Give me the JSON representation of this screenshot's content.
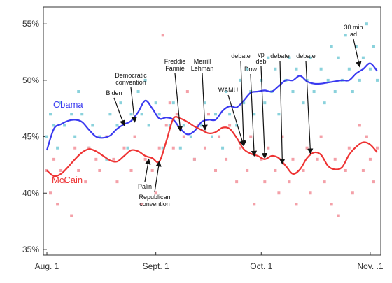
{
  "chart_data": {
    "type": "scatter",
    "title": "",
    "xlabel": "",
    "ylabel": "",
    "x_domain": [
      "2008-07-31",
      "2008-11-04"
    ],
    "ylim": [
      34.5,
      56.5
    ],
    "grid": false,
    "x_ticks": [
      {
        "date": "2008-08-01",
        "label": "Aug. 1"
      },
      {
        "date": "2008-09-01",
        "label": "Sept. 1"
      },
      {
        "date": "2008-10-01",
        "label": "Oct. 1"
      },
      {
        "date": "2008-11-01",
        "label": "Nov. .1"
      }
    ],
    "y_ticks": [
      {
        "value": 35,
        "label": "35%"
      },
      {
        "value": 40,
        "label": "40%"
      },
      {
        "value": 45,
        "label": "45%"
      },
      {
        "value": 50,
        "label": "50%"
      },
      {
        "value": 55,
        "label": "55%"
      }
    ],
    "series": [
      {
        "name": "Obama",
        "line_color": "#3a3af0",
        "point_color": "#8ad2dc",
        "trend": [
          [
            "2008-08-01",
            43.8
          ],
          [
            "2008-08-03",
            45.7
          ],
          [
            "2008-08-05",
            46.1
          ],
          [
            "2008-08-07",
            46.4
          ],
          [
            "2008-08-09",
            46.5
          ],
          [
            "2008-08-11",
            46.3
          ],
          [
            "2008-08-13",
            45.6
          ],
          [
            "2008-08-15",
            45.0
          ],
          [
            "2008-08-17",
            44.9
          ],
          [
            "2008-08-19",
            45.1
          ],
          [
            "2008-08-21",
            45.7
          ],
          [
            "2008-08-23",
            46.1
          ],
          [
            "2008-08-25",
            46.4
          ],
          [
            "2008-08-27",
            47.2
          ],
          [
            "2008-08-29",
            48.2
          ],
          [
            "2008-08-31",
            47.5
          ],
          [
            "2008-09-02",
            46.6
          ],
          [
            "2008-09-04",
            46.7
          ],
          [
            "2008-09-06",
            46.5
          ],
          [
            "2008-09-08",
            45.7
          ],
          [
            "2008-09-10",
            45.2
          ],
          [
            "2008-09-12",
            45.5
          ],
          [
            "2008-09-14",
            46.3
          ],
          [
            "2008-09-16",
            46.5
          ],
          [
            "2008-09-18",
            46.5
          ],
          [
            "2008-09-20",
            47.3
          ],
          [
            "2008-09-22",
            47.7
          ],
          [
            "2008-09-24",
            47.6
          ],
          [
            "2008-09-26",
            48.2
          ],
          [
            "2008-09-28",
            48.9
          ],
          [
            "2008-09-30",
            49.0
          ],
          [
            "2008-10-02",
            49.1
          ],
          [
            "2008-10-04",
            49.0
          ],
          [
            "2008-10-06",
            49.5
          ],
          [
            "2008-10-08",
            50.0
          ],
          [
            "2008-10-10",
            50.0
          ],
          [
            "2008-10-12",
            50.4
          ],
          [
            "2008-10-14",
            49.9
          ],
          [
            "2008-10-16",
            49.7
          ],
          [
            "2008-10-18",
            49.7
          ],
          [
            "2008-10-20",
            49.8
          ],
          [
            "2008-10-22",
            49.9
          ],
          [
            "2008-10-24",
            50.0
          ],
          [
            "2008-10-26",
            50.0
          ],
          [
            "2008-10-28",
            50.6
          ],
          [
            "2008-10-30",
            51.0
          ],
          [
            "2008-11-01",
            51.5
          ],
          [
            "2008-11-03",
            50.8
          ]
        ],
        "polls": [
          [
            "2008-08-01",
            45
          ],
          [
            "2008-08-02",
            47
          ],
          [
            "2008-08-03",
            46
          ],
          [
            "2008-08-04",
            44
          ],
          [
            "2008-08-05",
            48
          ],
          [
            "2008-08-06",
            46
          ],
          [
            "2008-08-08",
            47
          ],
          [
            "2008-08-09",
            45
          ],
          [
            "2008-08-10",
            49
          ],
          [
            "2008-08-11",
            47
          ],
          [
            "2008-08-13",
            44
          ],
          [
            "2008-08-14",
            46
          ],
          [
            "2008-08-16",
            45
          ],
          [
            "2008-08-18",
            43
          ],
          [
            "2008-08-19",
            47
          ],
          [
            "2008-08-21",
            46
          ],
          [
            "2008-08-22",
            48
          ],
          [
            "2008-08-24",
            44
          ],
          [
            "2008-08-25",
            47
          ],
          [
            "2008-08-27",
            49
          ],
          [
            "2008-08-28",
            47
          ],
          [
            "2008-08-29",
            50
          ],
          [
            "2008-08-30",
            46
          ],
          [
            "2008-09-01",
            48
          ],
          [
            "2008-09-02",
            47
          ],
          [
            "2008-09-03",
            44
          ],
          [
            "2008-09-05",
            46
          ],
          [
            "2008-09-06",
            48
          ],
          [
            "2008-09-08",
            44
          ],
          [
            "2008-09-09",
            46
          ],
          [
            "2008-09-11",
            45
          ],
          [
            "2008-09-12",
            43
          ],
          [
            "2008-09-14",
            46
          ],
          [
            "2008-09-15",
            48
          ],
          [
            "2008-09-17",
            45
          ],
          [
            "2008-09-18",
            47
          ],
          [
            "2008-09-20",
            44
          ],
          [
            "2008-09-21",
            49
          ],
          [
            "2008-09-22",
            47
          ],
          [
            "2008-09-24",
            46
          ],
          [
            "2008-09-25",
            50
          ],
          [
            "2008-09-26",
            48
          ],
          [
            "2008-09-27",
            51
          ],
          [
            "2008-09-28",
            49
          ],
          [
            "2008-09-29",
            47
          ],
          [
            "2008-10-01",
            50
          ],
          [
            "2008-10-02",
            48
          ],
          [
            "2008-10-03",
            52
          ],
          [
            "2008-10-04",
            49
          ],
          [
            "2008-10-05",
            51
          ],
          [
            "2008-10-06",
            47
          ],
          [
            "2008-10-08",
            50
          ],
          [
            "2008-10-09",
            52
          ],
          [
            "2008-10-10",
            49
          ],
          [
            "2008-10-11",
            51
          ],
          [
            "2008-10-13",
            48
          ],
          [
            "2008-10-14",
            50
          ],
          [
            "2008-10-15",
            52
          ],
          [
            "2008-10-16",
            49
          ],
          [
            "2008-10-18",
            51
          ],
          [
            "2008-10-19",
            48
          ],
          [
            "2008-10-20",
            50
          ],
          [
            "2008-10-21",
            53
          ],
          [
            "2008-10-22",
            49
          ],
          [
            "2008-10-23",
            52
          ],
          [
            "2008-10-24",
            50
          ],
          [
            "2008-10-25",
            54
          ],
          [
            "2008-10-26",
            51
          ],
          [
            "2008-10-27",
            49
          ],
          [
            "2008-10-28",
            53
          ],
          [
            "2008-10-29",
            50
          ],
          [
            "2008-10-30",
            52
          ],
          [
            "2008-10-31",
            55
          ],
          [
            "2008-11-01",
            51
          ],
          [
            "2008-11-02",
            53
          ],
          [
            "2008-11-03",
            50
          ]
        ]
      },
      {
        "name": "McCain",
        "line_color": "#ee3333",
        "point_color": "#f4a0a8",
        "trend": [
          [
            "2008-08-01",
            42.0
          ],
          [
            "2008-08-03",
            41.5
          ],
          [
            "2008-08-05",
            41.7
          ],
          [
            "2008-08-07",
            42.3
          ],
          [
            "2008-08-09",
            43.0
          ],
          [
            "2008-08-11",
            43.6
          ],
          [
            "2008-08-13",
            43.9
          ],
          [
            "2008-08-15",
            43.7
          ],
          [
            "2008-08-17",
            43.3
          ],
          [
            "2008-08-19",
            42.9
          ],
          [
            "2008-08-21",
            42.8
          ],
          [
            "2008-08-23",
            43.3
          ],
          [
            "2008-08-25",
            43.8
          ],
          [
            "2008-08-27",
            43.7
          ],
          [
            "2008-08-29",
            43.3
          ],
          [
            "2008-08-31",
            43.1
          ],
          [
            "2008-09-02",
            42.8
          ],
          [
            "2008-09-04",
            44.6
          ],
          [
            "2008-09-06",
            46.6
          ],
          [
            "2008-09-08",
            46.6
          ],
          [
            "2008-09-10",
            46.3
          ],
          [
            "2008-09-12",
            45.9
          ],
          [
            "2008-09-14",
            45.6
          ],
          [
            "2008-09-16",
            45.3
          ],
          [
            "2008-09-18",
            45.4
          ],
          [
            "2008-09-20",
            45.8
          ],
          [
            "2008-09-22",
            45.7
          ],
          [
            "2008-09-24",
            44.9
          ],
          [
            "2008-09-26",
            43.9
          ],
          [
            "2008-09-28",
            43.5
          ],
          [
            "2008-09-30",
            43.3
          ],
          [
            "2008-10-02",
            43.0
          ],
          [
            "2008-10-04",
            43.3
          ],
          [
            "2008-10-06",
            43.1
          ],
          [
            "2008-10-08",
            42.4
          ],
          [
            "2008-10-10",
            41.7
          ],
          [
            "2008-10-12",
            42.1
          ],
          [
            "2008-10-14",
            43.1
          ],
          [
            "2008-10-16",
            43.6
          ],
          [
            "2008-10-18",
            43.4
          ],
          [
            "2008-10-20",
            42.4
          ],
          [
            "2008-10-22",
            42.1
          ],
          [
            "2008-10-24",
            42.3
          ],
          [
            "2008-10-26",
            43.4
          ],
          [
            "2008-10-28",
            44.1
          ],
          [
            "2008-10-30",
            44.5
          ],
          [
            "2008-11-01",
            44.3
          ],
          [
            "2008-11-03",
            43.6
          ]
        ],
        "polls": [
          [
            "2008-08-01",
            42
          ],
          [
            "2008-08-02",
            40
          ],
          [
            "2008-08-03",
            43
          ],
          [
            "2008-08-04",
            39
          ],
          [
            "2008-08-05",
            42
          ],
          [
            "2008-08-06",
            41
          ],
          [
            "2008-08-08",
            38
          ],
          [
            "2008-08-09",
            44
          ],
          [
            "2008-08-10",
            42
          ],
          [
            "2008-08-12",
            41
          ],
          [
            "2008-08-13",
            44
          ],
          [
            "2008-08-15",
            43
          ],
          [
            "2008-08-16",
            42
          ],
          [
            "2008-08-18",
            45
          ],
          [
            "2008-08-20",
            43
          ],
          [
            "2008-08-21",
            41
          ],
          [
            "2008-08-23",
            44
          ],
          [
            "2008-08-25",
            42
          ],
          [
            "2008-08-26",
            45
          ],
          [
            "2008-08-28",
            39
          ],
          [
            "2008-08-29",
            43
          ],
          [
            "2008-08-31",
            42
          ],
          [
            "2008-09-01",
            40
          ],
          [
            "2008-09-02",
            44
          ],
          [
            "2008-09-03",
            54
          ],
          [
            "2008-09-04",
            46
          ],
          [
            "2008-09-05",
            48
          ],
          [
            "2008-09-06",
            44
          ],
          [
            "2008-09-07",
            47
          ],
          [
            "2008-09-09",
            45
          ],
          [
            "2008-09-10",
            49
          ],
          [
            "2008-09-12",
            43
          ],
          [
            "2008-09-13",
            46
          ],
          [
            "2008-09-15",
            44
          ],
          [
            "2008-09-16",
            47
          ],
          [
            "2008-09-18",
            42
          ],
          [
            "2008-09-19",
            45
          ],
          [
            "2008-09-21",
            43
          ],
          [
            "2008-09-22",
            46
          ],
          [
            "2008-09-24",
            41
          ],
          [
            "2008-09-25",
            44
          ],
          [
            "2008-09-27",
            42
          ],
          [
            "2008-09-28",
            45
          ],
          [
            "2008-09-29",
            39
          ],
          [
            "2008-10-01",
            43
          ],
          [
            "2008-10-02",
            41
          ],
          [
            "2008-10-03",
            44
          ],
          [
            "2008-10-05",
            42
          ],
          [
            "2008-10-06",
            40
          ],
          [
            "2008-10-07",
            45
          ],
          [
            "2008-10-09",
            41
          ],
          [
            "2008-10-10",
            43
          ],
          [
            "2008-10-11",
            39
          ],
          [
            "2008-10-13",
            42
          ],
          [
            "2008-10-14",
            44
          ],
          [
            "2008-10-15",
            40
          ],
          [
            "2008-10-17",
            43
          ],
          [
            "2008-10-18",
            45
          ],
          [
            "2008-10-19",
            41
          ],
          [
            "2008-10-21",
            39
          ],
          [
            "2008-10-22",
            43
          ],
          [
            "2008-10-23",
            38
          ],
          [
            "2008-10-25",
            42
          ],
          [
            "2008-10-26",
            44
          ],
          [
            "2008-10-27",
            40
          ],
          [
            "2008-10-29",
            46
          ],
          [
            "2008-10-30",
            42
          ],
          [
            "2008-10-31",
            45
          ],
          [
            "2008-11-01",
            43
          ],
          [
            "2008-11-02",
            41
          ],
          [
            "2008-11-03",
            44
          ]
        ]
      }
    ],
    "annotations": [
      {
        "lines": [
          "Biden"
        ],
        "date": "2008-08-23",
        "value": 46.0
      },
      {
        "lines": [
          "Democratic",
          "convention"
        ],
        "date": "2008-08-26",
        "value": 46.3
      },
      {
        "lines": [
          "Palin"
        ],
        "date": "2008-08-30",
        "value": 43.0
      },
      {
        "lines": [
          "Republican",
          "convention"
        ],
        "date": "2008-09-02",
        "value": 42.8
      },
      {
        "lines": [
          "Freddie",
          "Fannie"
        ],
        "date": "2008-09-08",
        "value": 45.5
      },
      {
        "lines": [
          "Merrill",
          "Lehman"
        ],
        "date": "2008-09-15",
        "value": 45.6
      },
      {
        "lines": [
          "WAMU"
        ],
        "date": "2008-09-26",
        "value": 44.2
      },
      {
        "lines": [
          "debate"
        ],
        "date": "2008-09-26",
        "value": 44.2
      },
      {
        "lines": [
          "Dow"
        ],
        "date": "2008-09-29",
        "value": 43.3
      },
      {
        "lines": [
          "vp",
          "deb"
        ],
        "date": "2008-10-02",
        "value": 43.1
      },
      {
        "lines": [
          "debate"
        ],
        "date": "2008-10-07",
        "value": 42.6
      },
      {
        "lines": [
          "debate"
        ],
        "date": "2008-10-15",
        "value": 43.5
      },
      {
        "lines": [
          "30 min",
          "ad"
        ],
        "date": "2008-10-29",
        "value": 51.2
      }
    ]
  }
}
